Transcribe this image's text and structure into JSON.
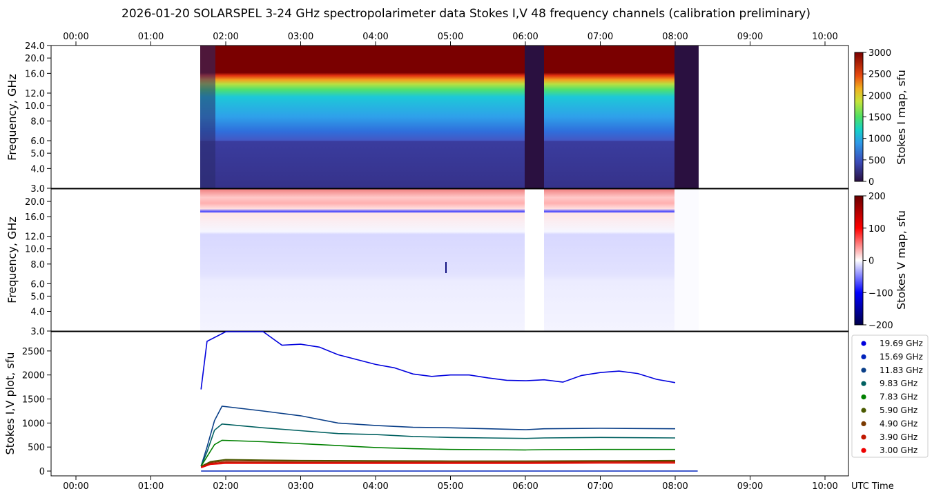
{
  "title": "2026-01-20  SOLARSPEL  3-24 GHz spectropolarimeter data   Stokes I,V   48 frequency channels   (calibration preliminary)",
  "x_ticks": [
    "00:00",
    "01:00",
    "02:00",
    "03:00",
    "04:00",
    "05:00",
    "06:00",
    "07:00",
    "08:00",
    "09:00",
    "10:00"
  ],
  "x_label": "UTC Time",
  "chart_data": [
    {
      "type": "heatmap",
      "ylabel": "Frequency, GHz",
      "yticks": [
        "24.0",
        "20.0",
        "16.0",
        "12.0",
        "10.0",
        "8.0",
        "6.0",
        "5.0",
        "4.0",
        "3.0"
      ],
      "colorbar_label": "Stokes I map, sfu",
      "colorbar_ticks": [
        "3000",
        "2500",
        "2000",
        "1500",
        "1000",
        "500",
        "0"
      ],
      "zlim": [
        0,
        3000
      ],
      "data_time_range": [
        "01:40",
        "08:19"
      ],
      "gaps": [
        [
          "06:00",
          "06:15"
        ],
        [
          "08:00",
          "08:19"
        ]
      ],
      "bands": [
        {
          "freq": "22-24 GHz",
          "value": 3000
        },
        {
          "freq": "16-20 GHz",
          "value": 2400
        },
        {
          "freq": "12-16 GHz",
          "value": 1400
        },
        {
          "freq": "8-12 GHz",
          "value": 900
        },
        {
          "freq": "6-8 GHz",
          "value": 700
        },
        {
          "freq": "3-6 GHz",
          "value": 350
        }
      ]
    },
    {
      "type": "heatmap",
      "ylabel": "Frequency, GHz",
      "yticks": [
        "20.0",
        "16.0",
        "12.0",
        "10.0",
        "8.0",
        "6.0",
        "5.0",
        "4.0",
        "3.0"
      ],
      "colorbar_label": "Stokes V map, sfu",
      "colorbar_ticks": [
        "200",
        "100",
        "0",
        "−100",
        "−200"
      ],
      "zlim": [
        -200,
        200
      ],
      "data_time_range": [
        "01:40",
        "08:19"
      ],
      "gaps": [
        [
          "06:00",
          "06:15"
        ],
        [
          "08:00",
          "08:19"
        ]
      ]
    },
    {
      "type": "line",
      "ylabel": "Stokes I,V plot, sfu",
      "yticks": [
        "2500",
        "2000",
        "1500",
        "1000",
        "500",
        "0"
      ],
      "ylim": [
        -100,
        2900
      ],
      "x_unit": "hours UTC",
      "series": [
        {
          "name": "19.69 GHz",
          "color": "#0000dd",
          "points": [
            [
              1.67,
              1700
            ],
            [
              1.75,
              2700
            ],
            [
              2.0,
              3300
            ],
            [
              2.5,
              2950
            ],
            [
              2.75,
              2620
            ],
            [
              3.0,
              2640
            ],
            [
              3.25,
              2580
            ],
            [
              3.5,
              2420
            ],
            [
              3.75,
              2320
            ],
            [
              4.0,
              2220
            ],
            [
              4.25,
              2150
            ],
            [
              4.5,
              2020
            ],
            [
              4.75,
              1970
            ],
            [
              5.0,
              2000
            ],
            [
              5.25,
              2000
            ],
            [
              5.5,
              1940
            ],
            [
              5.75,
              1890
            ],
            [
              6.0,
              1880
            ],
            [
              6.25,
              1900
            ],
            [
              6.5,
              1850
            ],
            [
              6.75,
              1990
            ],
            [
              7.0,
              2050
            ],
            [
              7.25,
              2080
            ],
            [
              7.5,
              2030
            ],
            [
              7.75,
              1910
            ],
            [
              8.0,
              1840
            ]
          ]
        },
        {
          "name": "15.69 GHz",
          "color": "#0022bb",
          "points": [
            [
              1.67,
              0
            ],
            [
              8.3,
              0
            ]
          ]
        },
        {
          "name": "11.83 GHz",
          "color": "#0a3f88",
          "points": [
            [
              1.67,
              100
            ],
            [
              1.75,
              500
            ],
            [
              1.85,
              1050
            ],
            [
              1.95,
              1350
            ],
            [
              2.5,
              1250
            ],
            [
              3.0,
              1150
            ],
            [
              3.5,
              1000
            ],
            [
              4.0,
              950
            ],
            [
              4.5,
              910
            ],
            [
              5.0,
              900
            ],
            [
              5.5,
              880
            ],
            [
              6.0,
              860
            ],
            [
              6.25,
              880
            ],
            [
              7.0,
              890
            ],
            [
              8.0,
              880
            ]
          ]
        },
        {
          "name": "9.83 GHz",
          "color": "#006060",
          "points": [
            [
              1.67,
              100
            ],
            [
              1.75,
              400
            ],
            [
              1.85,
              850
            ],
            [
              1.95,
              980
            ],
            [
              2.5,
              900
            ],
            [
              3.0,
              840
            ],
            [
              3.5,
              780
            ],
            [
              4.0,
              760
            ],
            [
              4.5,
              720
            ],
            [
              5.0,
              700
            ],
            [
              5.5,
              690
            ],
            [
              6.0,
              680
            ],
            [
              6.25,
              690
            ],
            [
              7.0,
              700
            ],
            [
              8.0,
              690
            ]
          ]
        },
        {
          "name": "7.83 GHz",
          "color": "#008000",
          "points": [
            [
              1.67,
              100
            ],
            [
              1.75,
              300
            ],
            [
              1.85,
              550
            ],
            [
              1.95,
              640
            ],
            [
              2.5,
              610
            ],
            [
              3.0,
              570
            ],
            [
              3.5,
              530
            ],
            [
              4.0,
              490
            ],
            [
              4.5,
              465
            ],
            [
              5.0,
              450
            ],
            [
              5.5,
              445
            ],
            [
              6.0,
              440
            ],
            [
              6.25,
              445
            ],
            [
              7.0,
              450
            ],
            [
              8.0,
              450
            ]
          ]
        },
        {
          "name": "5.90 GHz",
          "color": "#4a5a00",
          "points": [
            [
              1.67,
              100
            ],
            [
              1.8,
              200
            ],
            [
              2.0,
              240
            ],
            [
              3.0,
              220
            ],
            [
              4.0,
              215
            ],
            [
              5.0,
              210
            ],
            [
              6.0,
              210
            ],
            [
              7.0,
              215
            ],
            [
              8.0,
              220
            ]
          ]
        },
        {
          "name": "4.90 GHz",
          "color": "#7a3a00",
          "points": [
            [
              1.67,
              90
            ],
            [
              1.8,
              180
            ],
            [
              2.0,
              215
            ],
            [
              3.0,
              205
            ],
            [
              4.0,
              200
            ],
            [
              5.0,
              200
            ],
            [
              6.0,
              200
            ],
            [
              7.0,
              205
            ],
            [
              8.0,
              205
            ]
          ]
        },
        {
          "name": "3.90 GHz",
          "color": "#c01800",
          "points": [
            [
              1.67,
              80
            ],
            [
              1.8,
              160
            ],
            [
              2.0,
              185
            ],
            [
              3.0,
              180
            ],
            [
              4.0,
              180
            ],
            [
              5.0,
              180
            ],
            [
              6.0,
              180
            ],
            [
              7.0,
              185
            ],
            [
              8.0,
              185
            ]
          ]
        },
        {
          "name": "3.00 GHz",
          "color": "#ee0000",
          "points": [
            [
              1.67,
              70
            ],
            [
              1.8,
              140
            ],
            [
              2.0,
              160
            ],
            [
              3.0,
              160
            ],
            [
              4.0,
              160
            ],
            [
              5.0,
              160
            ],
            [
              6.0,
              160
            ],
            [
              7.0,
              165
            ],
            [
              8.0,
              165
            ]
          ]
        }
      ]
    }
  ]
}
